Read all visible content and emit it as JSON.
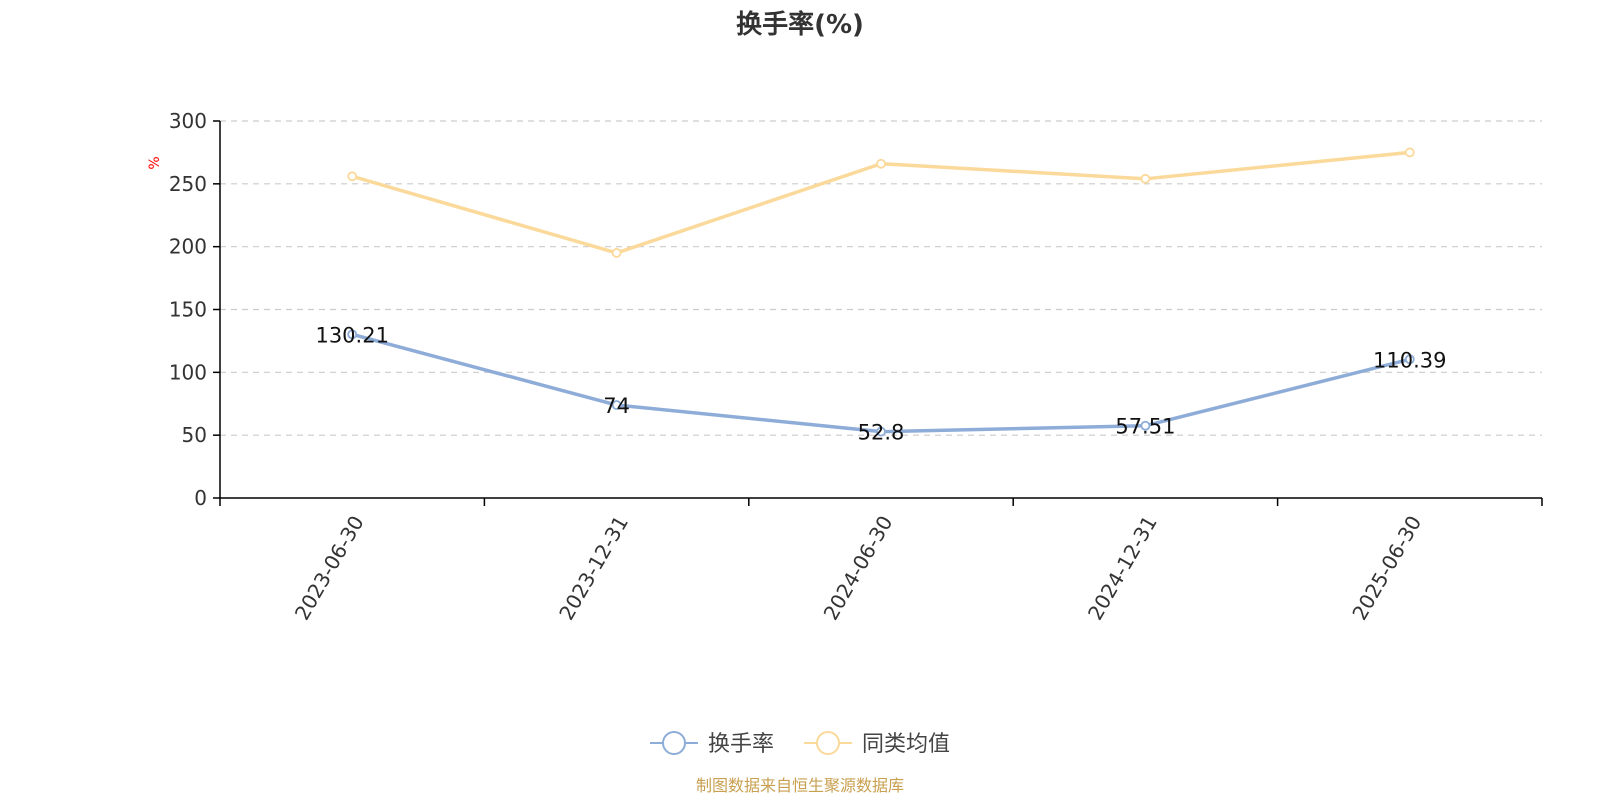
{
  "chart_data": {
    "type": "line",
    "title": "换手率(%)",
    "ylabel": "%",
    "categories": [
      "2023-06-30",
      "2023-12-31",
      "2024-06-30",
      "2024-12-31",
      "2025-06-30"
    ],
    "ylim": [
      0,
      300
    ],
    "yticks": [
      0,
      50,
      100,
      150,
      200,
      250,
      300
    ],
    "grid": true,
    "legend_position": "bottom",
    "series": [
      {
        "name": "换手率",
        "color": "#8eacd8",
        "values": [
          130.21,
          74,
          52.8,
          57.51,
          110.39
        ],
        "show_labels": true,
        "labels": [
          "130.21",
          "74",
          "52.8",
          "57.51",
          "110.39"
        ]
      },
      {
        "name": "同类均值",
        "color": "#fad99a",
        "values": [
          256,
          195,
          266,
          254,
          275
        ],
        "show_labels": false
      }
    ]
  },
  "source_note": "制图数据来自恒生聚源数据库",
  "colors": {
    "ylabel": "#ff0000",
    "source": "#c8a050",
    "axis": "#000000",
    "grid": "#cccccc"
  }
}
